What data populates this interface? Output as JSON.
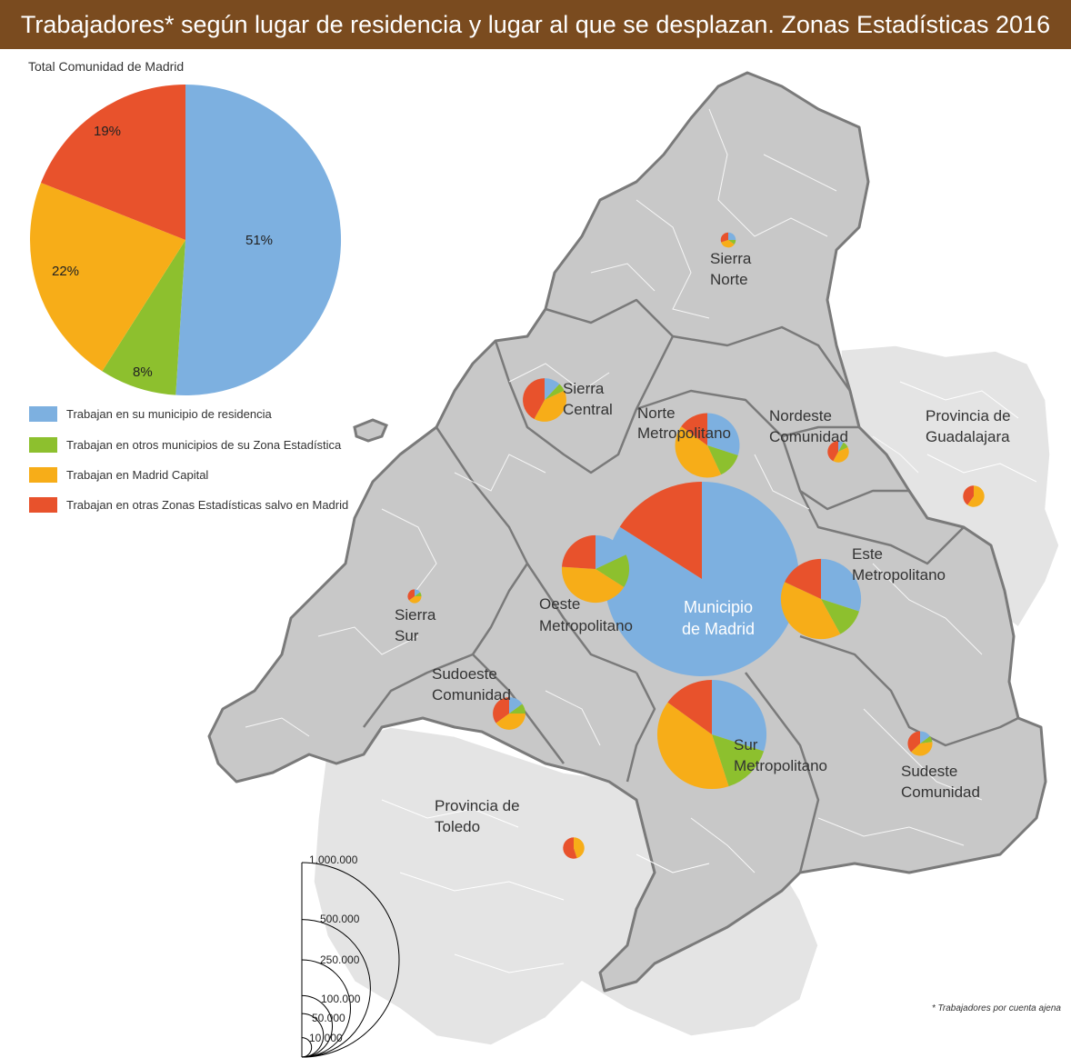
{
  "title": "Trabajadores* según lugar de residencia y lugar al que se desplazan. Zonas Estadísticas 2016",
  "colors": {
    "title_bg": "#7a4b1f",
    "residence": "#7db0e0",
    "same_zone": "#8dc02e",
    "madrid_capital": "#f7ad18",
    "other_zones": "#e8522c",
    "region_fill": "#c8c8c8",
    "region_border": "#7a7a7a",
    "outside_fill": "#e4e4e4"
  },
  "total_pie": {
    "title": "Total Comunidad de Madrid",
    "slices": [
      {
        "key": "residence",
        "value": 51,
        "label": "51%"
      },
      {
        "key": "same_zone",
        "value": 8,
        "label": "8%"
      },
      {
        "key": "madrid_capital",
        "value": 22,
        "label": "22%"
      },
      {
        "key": "other_zones",
        "value": 19,
        "label": "19%"
      }
    ]
  },
  "legend": [
    {
      "key": "residence",
      "label": "Trabajan en su municipio de residencia"
    },
    {
      "key": "same_zone",
      "label": "Trabajan en otros municipios de su Zona Estadística"
    },
    {
      "key": "madrid_capital",
      "label": "Trabajan en Madrid Capital"
    },
    {
      "key": "other_zones",
      "label": "Trabajan en otras Zonas Estadísticas salvo en Madrid"
    }
  ],
  "outside_labels": {
    "guadalajara": [
      "Provincia de",
      "Guadalajara"
    ],
    "toledo": [
      "Provincia de",
      "Toledo"
    ]
  },
  "zones": [
    {
      "id": "sierra-norte",
      "label": [
        "Sierra",
        "Norte"
      ],
      "workers": 6000,
      "shares": [
        25,
        10,
        35,
        30
      ]
    },
    {
      "id": "sierra-central",
      "label": [
        "Sierra",
        "Central"
      ],
      "workers": 50000,
      "shares": [
        12,
        6,
        40,
        42
      ]
    },
    {
      "id": "norte-metropolitano",
      "label": [
        "Norte",
        "Metropolitano"
      ],
      "workers": 110000,
      "shares": [
        30,
        13,
        42,
        15
      ]
    },
    {
      "id": "nordeste-comunidad",
      "label": [
        "Nordeste",
        "Comunidad"
      ],
      "workers": 12000,
      "shares": [
        8,
        10,
        40,
        42
      ]
    },
    {
      "id": "provincia-guadalajara",
      "label": [],
      "workers": 12000,
      "shares": [
        0,
        0,
        60,
        40
      ]
    },
    {
      "id": "municipio-de-madrid",
      "label": [
        "Municipio",
        "de Madrid"
      ],
      "workers": 1000000,
      "shares": [
        84,
        0,
        0,
        16
      ]
    },
    {
      "id": "oeste-metropolitano",
      "label": [
        "Oeste",
        "Metropolitano"
      ],
      "workers": 120000,
      "shares": [
        18,
        16,
        42,
        24
      ]
    },
    {
      "id": "este-metropolitano",
      "label": [
        "Este",
        "Metropolitano"
      ],
      "workers": 170000,
      "shares": [
        30,
        12,
        40,
        18
      ]
    },
    {
      "id": "sierra-sur",
      "label": [
        "Sierra",
        "Sur"
      ],
      "workers": 5000,
      "shares": [
        15,
        10,
        40,
        35
      ]
    },
    {
      "id": "sudoeste-comunidad",
      "label": [
        "Sudoeste",
        "Comunidad"
      ],
      "workers": 28000,
      "shares": [
        15,
        10,
        40,
        35
      ]
    },
    {
      "id": "sur-metropolitano",
      "label": [
        "Sur",
        "Metropolitano"
      ],
      "workers": 315000,
      "shares": [
        30,
        15,
        40,
        15
      ]
    },
    {
      "id": "sudeste-comunidad",
      "label": [
        "Sudeste",
        "Comunidad"
      ],
      "workers": 16000,
      "shares": [
        15,
        8,
        40,
        37
      ]
    },
    {
      "id": "provincia-toledo",
      "label": [],
      "workers": 12000,
      "shares": [
        0,
        0,
        45,
        55
      ]
    }
  ],
  "size_scale": {
    "values": [
      10000,
      50000,
      100000,
      250000,
      500000,
      1000000
    ],
    "labels": [
      "10.000",
      "50.000",
      "100.000",
      "250.000",
      "500.000",
      "1.000.000"
    ]
  },
  "footnote": "* Trabajadores por cuenta ajena"
}
